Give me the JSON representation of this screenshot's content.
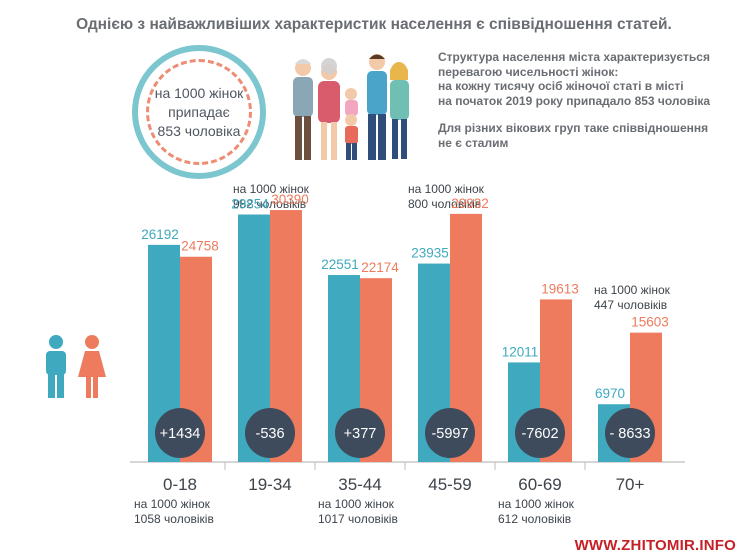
{
  "title": "Однією з найважливіших характеристик населення є співвідношення статей.",
  "badge": {
    "line1": "на 1000 жінок",
    "line2": "припадає",
    "line3": "853 чоловіка"
  },
  "intro": {
    "p1": [
      "Структура населення міста характеризується",
      "перевагою чисельності жінок:",
      "на кожну тисячу осіб жіночої статі в місті",
      "на початок 2019 року припадало 853 чоловіка"
    ],
    "p2": [
      "Для різних вікових груп таке співвідношення",
      "не є сталим"
    ]
  },
  "colors": {
    "men": "#3fa9c0",
    "women": "#ee7b5e",
    "circle": "#3d4b5c",
    "axis": "#c8c8c8"
  },
  "icons": [
    "male-figure-icon",
    "female-figure-icon",
    "family-illustration"
  ],
  "chart_data": {
    "type": "bar",
    "categories": [
      "0-18",
      "19-34",
      "35-44",
      "45-59",
      "60-69",
      "70+"
    ],
    "series": [
      {
        "values": [
          26192,
          29854,
          22551,
          23935,
          12011,
          6970
        ]
      },
      {
        "values": [
          24758,
          30390,
          22174,
          29932,
          19613,
          15603
        ]
      }
    ],
    "differences": [
      "+1434",
      "-536",
      "+377",
      "-5997",
      "-7602",
      "- 8633"
    ],
    "ratio_notes": [
      {
        "category": "0-18",
        "line1": "на 1000 жінок",
        "line2": "1058 чоловіків"
      },
      {
        "category": "19-34",
        "line1": "на 1000 жінок",
        "line2": "982 чоловіків"
      },
      {
        "category": "35-44",
        "line1": "на 1000 жінок",
        "line2": "1017 чоловіків"
      },
      {
        "category": "45-59",
        "line1": "на 1000 жінок",
        "line2": "800 чоловіків"
      },
      {
        "category": "60-69",
        "line1": "на 1000 жінок",
        "line2": "612 чоловіків"
      },
      {
        "category": "70+",
        "line1": "на 1000 жінок",
        "line2": "447 чоловіків"
      }
    ],
    "ylim": [
      0,
      35000
    ],
    "grid": false,
    "title": "",
    "xlabel": "",
    "ylabel": ""
  },
  "watermark": "WWW.ZHITOMIR.INFO"
}
